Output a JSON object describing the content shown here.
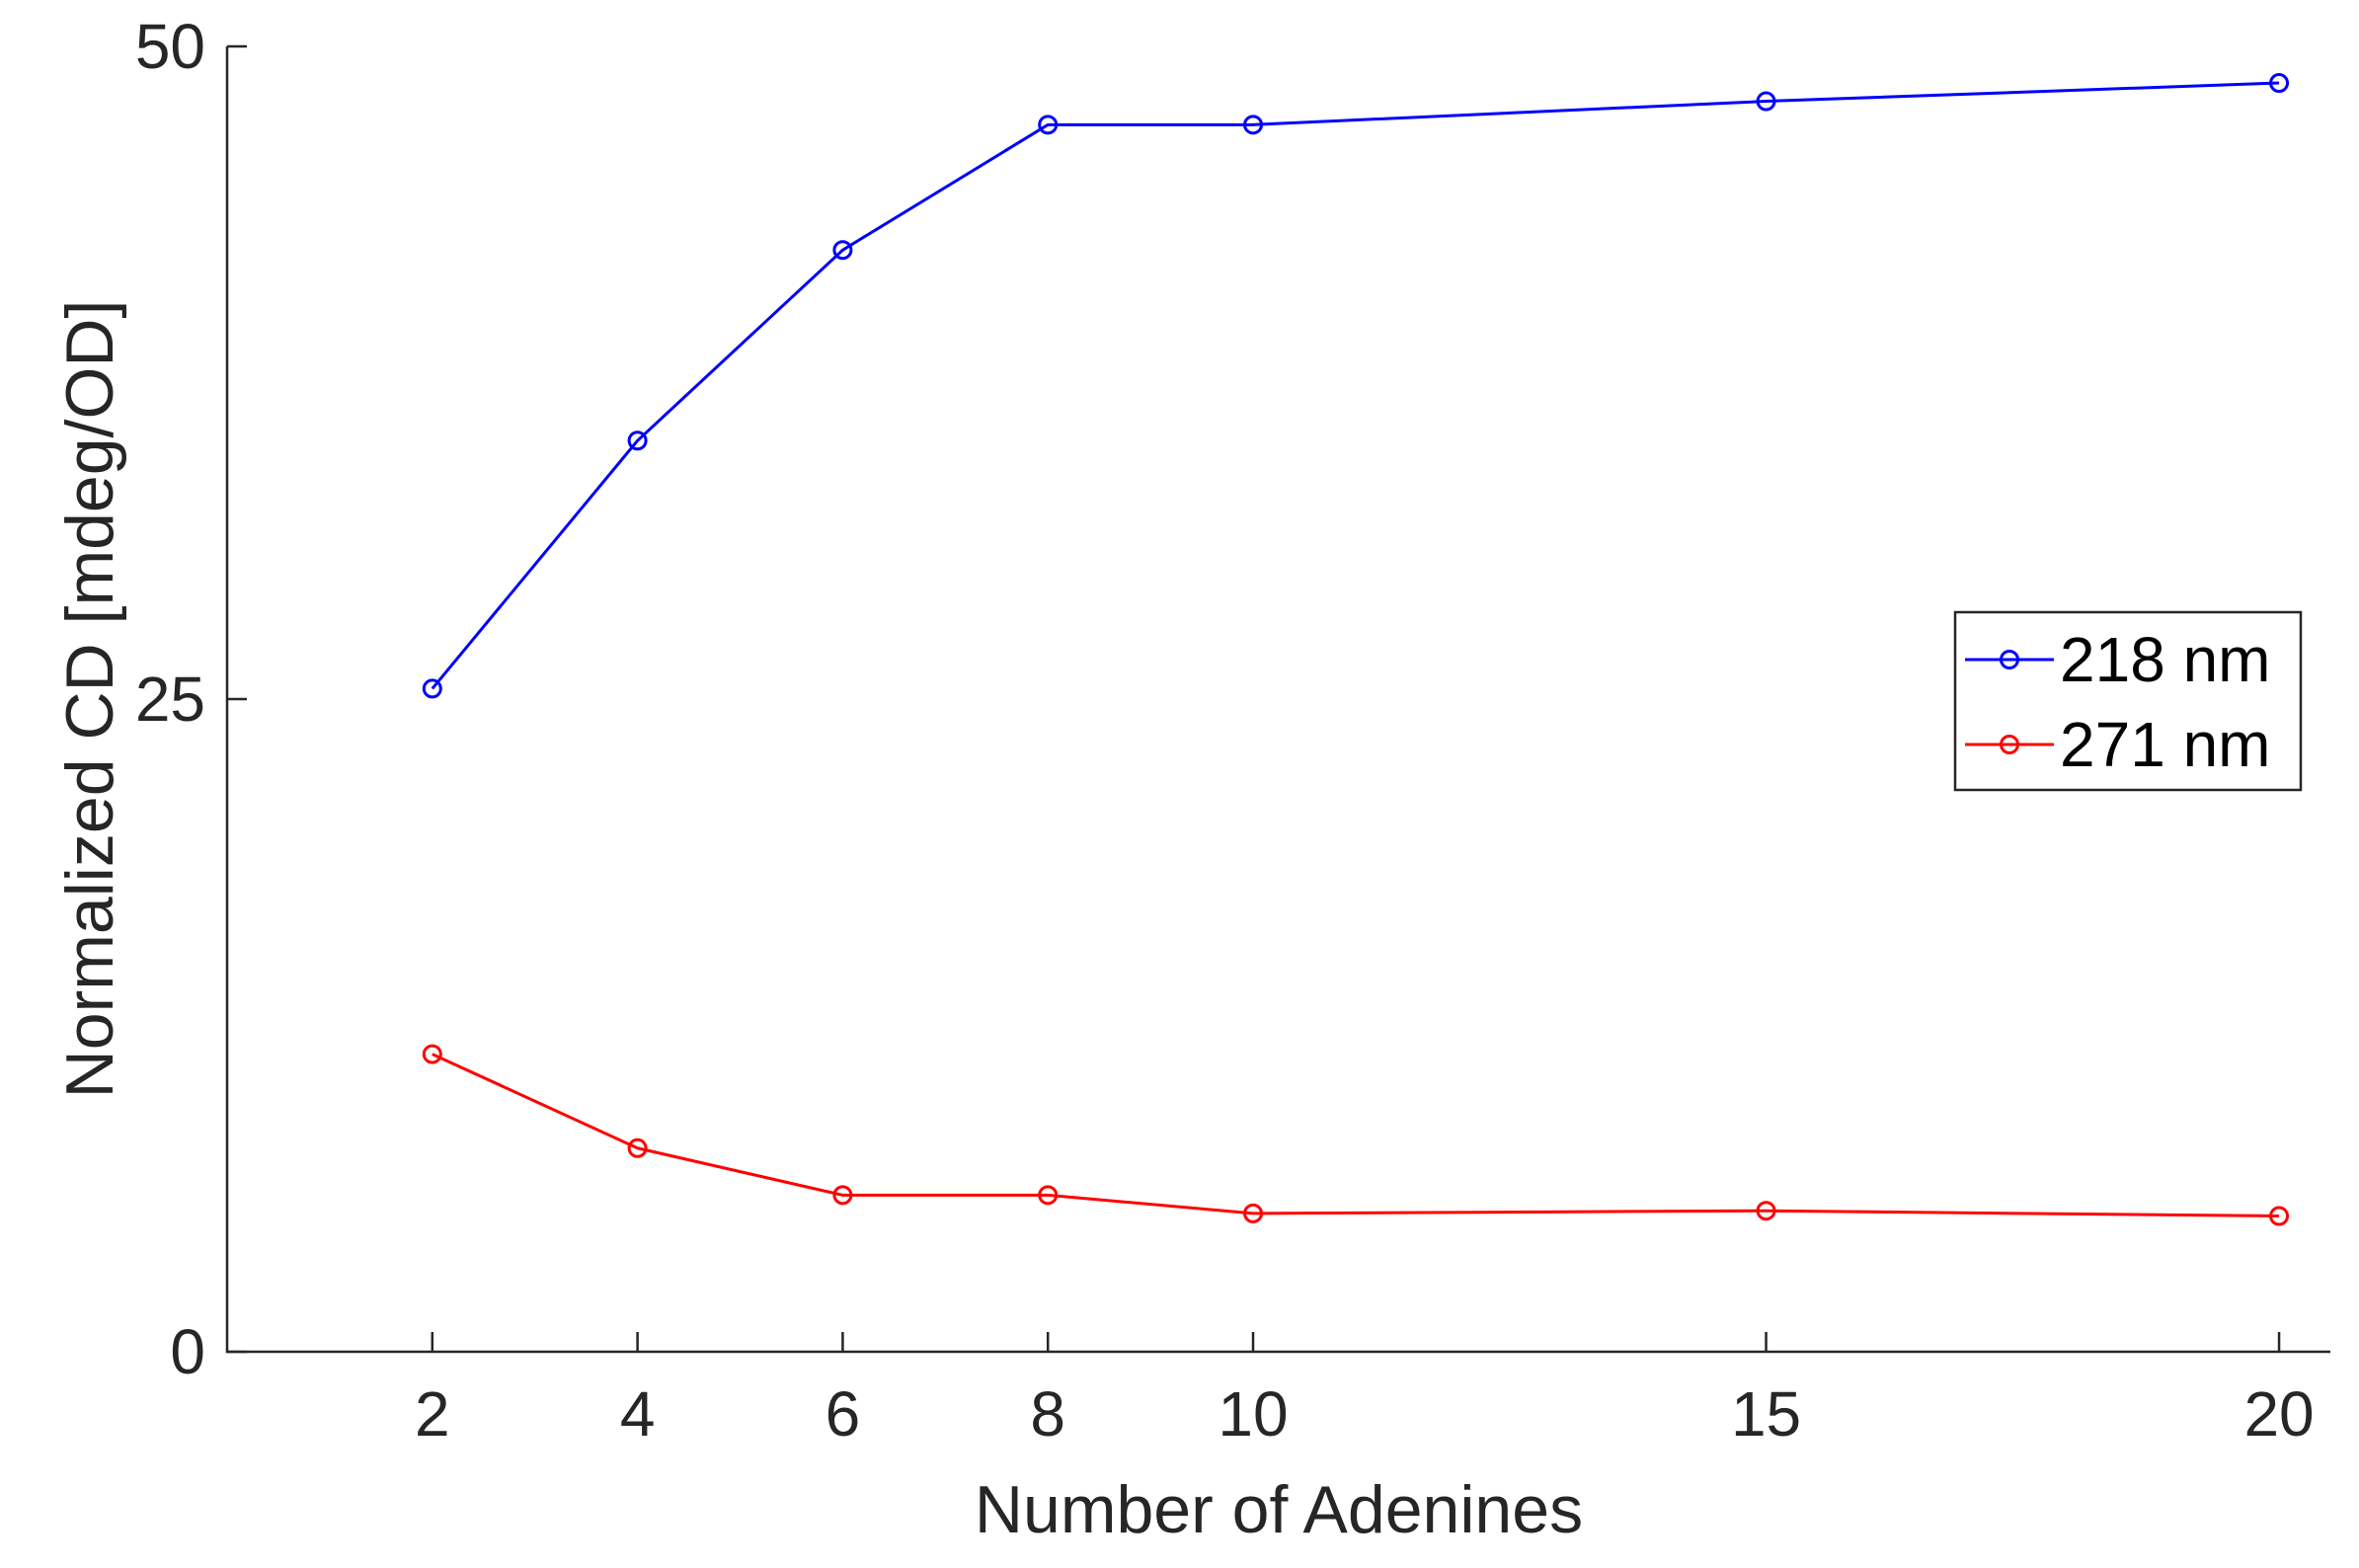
{
  "chart_data": {
    "type": "line",
    "title": "",
    "xlabel": "Number of Adenines",
    "ylabel": "Normalized CD [mdeg/OD]",
    "x": [
      2,
      4,
      6,
      8,
      10,
      15,
      20
    ],
    "xticks": [
      "2",
      "4",
      "6",
      "8",
      "10",
      "15",
      "20"
    ],
    "xlim": [
      0,
      20.5
    ],
    "ylim": [
      0,
      50
    ],
    "yticks": [
      "0",
      "25",
      "50"
    ],
    "grid": false,
    "legend_position": "right",
    "series": [
      {
        "name": "218 nm",
        "color": "#0000ff",
        "marker": "circle",
        "values": [
          25.4,
          34.9,
          42.2,
          47.0,
          47.0,
          47.9,
          48.6
        ]
      },
      {
        "name": "271 nm",
        "color": "#ff0000",
        "marker": "circle",
        "values": [
          11.4,
          7.8,
          6.0,
          6.0,
          5.3,
          5.4,
          5.2
        ]
      }
    ]
  }
}
